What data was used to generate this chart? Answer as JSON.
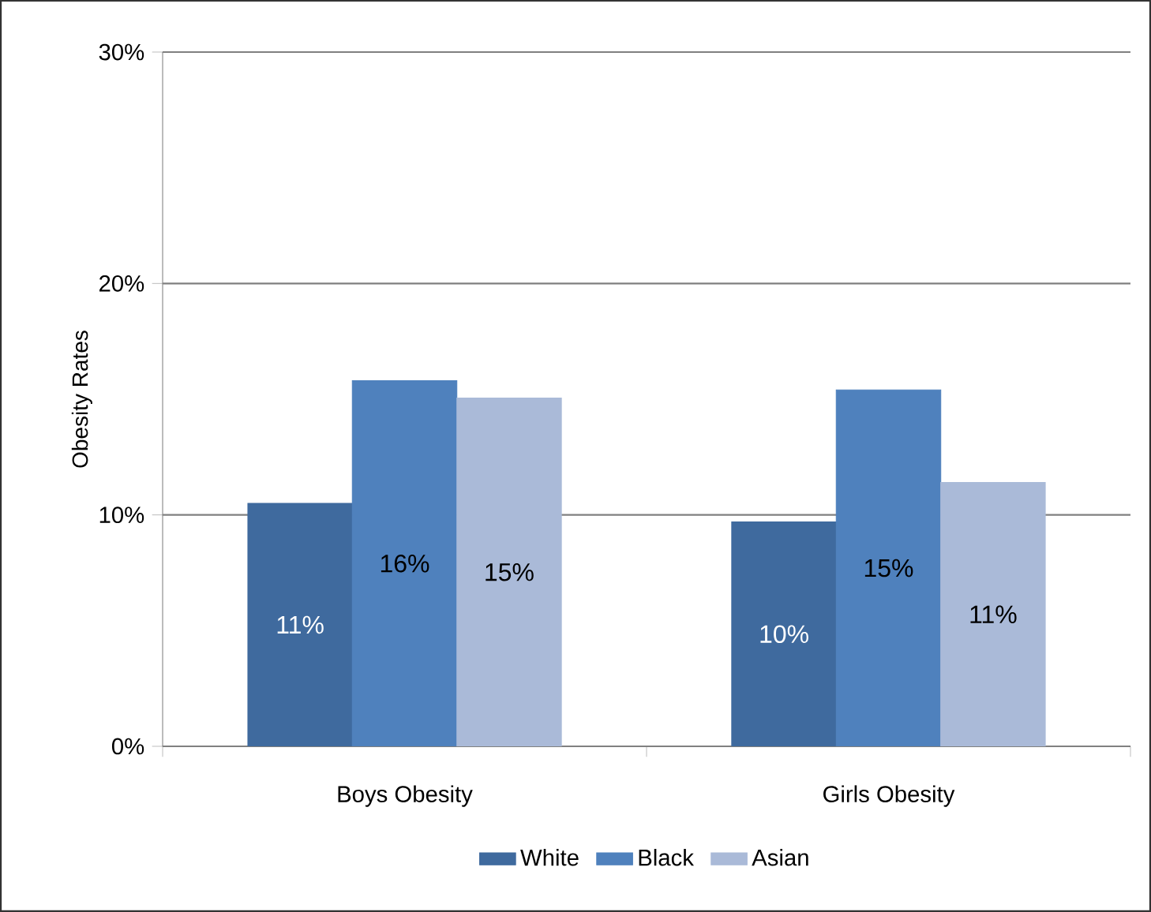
{
  "chart_data": {
    "type": "bar",
    "ylabel": "Obesity Rates",
    "categories": [
      "Boys Obesity",
      "Girls Obesity"
    ],
    "series": [
      {
        "name": "White",
        "color": "#3f6a9e",
        "values": [
          10.5,
          9.7
        ],
        "value_labels": [
          "11%",
          "10%"
        ]
      },
      {
        "name": "Black",
        "color": "#4f81bd",
        "values": [
          15.8,
          15.4
        ],
        "value_labels": [
          "16%",
          "15%"
        ]
      },
      {
        "name": "Asian",
        "color": "#aabad8",
        "values": [
          15.05,
          11.4
        ],
        "value_labels": [
          "15%",
          "11%"
        ]
      }
    ],
    "ylim": [
      0,
      30
    ],
    "yticks": [
      {
        "value": 0,
        "label": "0%"
      },
      {
        "value": 10,
        "label": "10%"
      },
      {
        "value": 20,
        "label": "20%"
      },
      {
        "value": 30,
        "label": "30%"
      }
    ],
    "grid": "y",
    "legend": "bottom"
  }
}
